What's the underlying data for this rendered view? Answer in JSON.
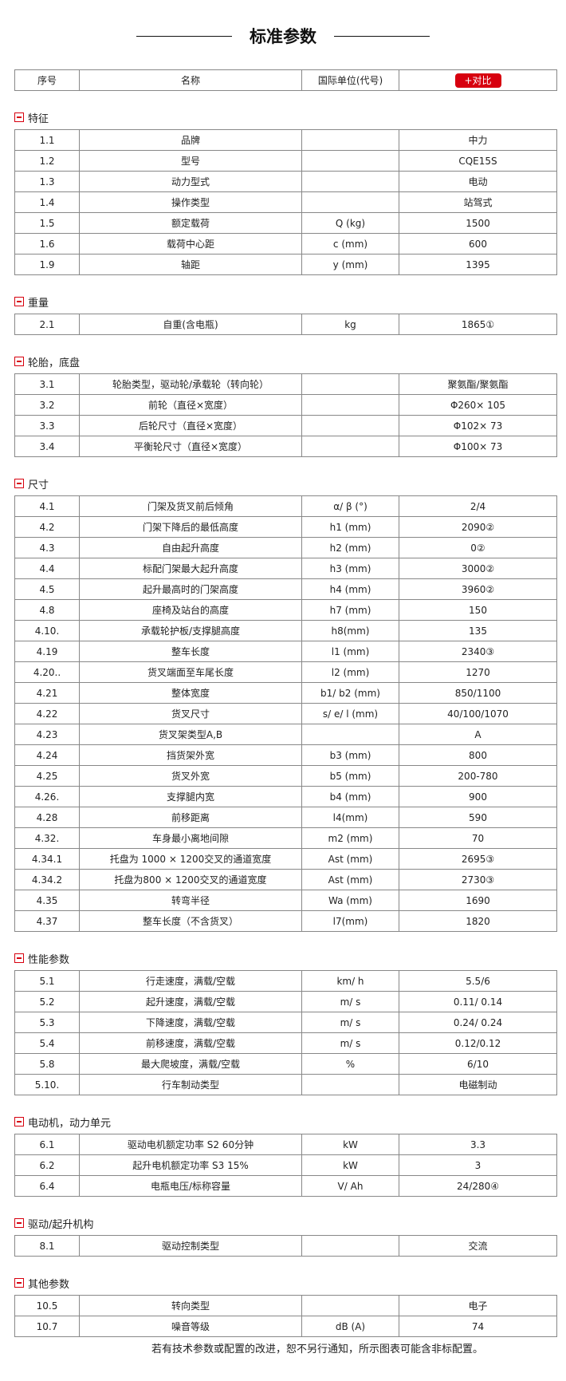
{
  "title": "标准参数",
  "header": {
    "col1": "序号",
    "col2": "名称",
    "col3": "国际单位(代号)",
    "compare_button": "+对比"
  },
  "accent_color": "#d7000f",
  "sections": [
    {
      "title": "特征",
      "rows": [
        [
          "1.1",
          "品牌",
          "",
          "中力"
        ],
        [
          "1.2",
          "型号",
          "",
          "CQE15S"
        ],
        [
          "1.3",
          "动力型式",
          "",
          "电动"
        ],
        [
          "1.4",
          "操作类型",
          "",
          "站驾式"
        ],
        [
          "1.5",
          "额定载荷",
          "Q (kg)",
          "1500"
        ],
        [
          "1.6",
          "载荷中心距",
          "c (mm)",
          "600"
        ],
        [
          "1.9",
          "轴距",
          "y (mm)",
          "1395"
        ]
      ]
    },
    {
      "title": "重量",
      "rows": [
        [
          "2.1",
          "自重(含电瓶)",
          "kg",
          "1865①"
        ]
      ]
    },
    {
      "title": "轮胎，底盘",
      "rows": [
        [
          "3.1",
          "轮胎类型，驱动轮/承载轮（转向轮）",
          "",
          "聚氨酯/聚氨酯"
        ],
        [
          "3.2",
          "前轮（直径×宽度）",
          "",
          "Φ260× 105"
        ],
        [
          "3.3",
          "后轮尺寸（直径×宽度）",
          "",
          "Φ102× 73"
        ],
        [
          "3.4",
          "平衡轮尺寸（直径×宽度）",
          "",
          "Φ100× 73"
        ]
      ]
    },
    {
      "title": "尺寸",
      "rows": [
        [
          "4.1",
          "门架及货叉前后倾角",
          "α/ β (°)",
          "2/4"
        ],
        [
          "4.2",
          "门架下降后的最低高度",
          "h1 (mm)",
          "2090②"
        ],
        [
          "4.3",
          "自由起升高度",
          "h2 (mm)",
          "0②"
        ],
        [
          "4.4",
          "标配门架最大起升高度",
          "h3 (mm)",
          "3000②"
        ],
        [
          "4.5",
          "起升最高时的门架高度",
          "h4 (mm)",
          "3960②"
        ],
        [
          "4.8",
          "座椅及站台的高度",
          "h7 (mm)",
          "150"
        ],
        [
          "4.10.",
          "承载轮护板/支撑腿高度",
          "h8(mm)",
          "135"
        ],
        [
          "4.19",
          "整车长度",
          "l1 (mm)",
          "2340③"
        ],
        [
          "4.20..",
          "货叉端面至车尾长度",
          "l2 (mm)",
          "1270"
        ],
        [
          "4.21",
          "整体宽度",
          "b1/ b2 (mm)",
          "850/1100"
        ],
        [
          "4.22",
          "货叉尺寸",
          "s/ e/ l (mm)",
          "40/100/1070"
        ],
        [
          "4.23",
          "货叉架类型A,B",
          "",
          "A"
        ],
        [
          "4.24",
          "挡货架外宽",
          "b3 (mm)",
          "800"
        ],
        [
          "4.25",
          "货叉外宽",
          "b5 (mm)",
          "200-780"
        ],
        [
          "4.26.",
          "支撑腿内宽",
          "b4 (mm)",
          "900"
        ],
        [
          "4.28",
          "前移距离",
          "l4(mm)",
          "590"
        ],
        [
          "4.32.",
          "车身最小离地间隙",
          "m2 (mm)",
          "70"
        ],
        [
          "4.34.1",
          "托盘为 1000 × 1200交叉的通道宽度",
          "Ast (mm)",
          "2695③"
        ],
        [
          "4.34.2",
          "托盘为800 × 1200交叉的通道宽度",
          "Ast (mm)",
          "2730③"
        ],
        [
          "4.35",
          "转弯半径",
          "Wa (mm)",
          "1690"
        ],
        [
          "4.37",
          "整车长度（不含货叉）",
          "l7(mm)",
          "1820"
        ]
      ]
    },
    {
      "title": "性能参数",
      "rows": [
        [
          "5.1",
          "行走速度，满载/空载",
          "km/ h",
          "5.5/6"
        ],
        [
          "5.2",
          "起升速度，满载/空载",
          "m/ s",
          "0.11/ 0.14"
        ],
        [
          "5.3",
          "下降速度，满载/空载",
          "m/ s",
          "0.24/ 0.24"
        ],
        [
          "5.4",
          "前移速度，满载/空载",
          "m/ s",
          "0.12/0.12"
        ],
        [
          "5.8",
          "最大爬坡度，满载/空载",
          "%",
          "6/10"
        ],
        [
          "5.10.",
          "行车制动类型",
          "",
          "电磁制动"
        ]
      ]
    },
    {
      "title": "电动机，动力单元",
      "rows": [
        [
          "6.1",
          "驱动电机额定功率 S2 60分钟",
          "kW",
          "3.3"
        ],
        [
          "6.2",
          "起升电机额定功率 S3 15%",
          "kW",
          "3"
        ],
        [
          "6.4",
          "电瓶电压/标称容量",
          "V/ Ah",
          "24/280④"
        ]
      ]
    },
    {
      "title": "驱动/起升机构",
      "rows": [
        [
          "8.1",
          "驱动控制类型",
          "",
          "交流"
        ]
      ]
    },
    {
      "title": "其他参数",
      "rows": [
        [
          "10.5",
          "转向类型",
          "",
          "电子"
        ],
        [
          "10.7",
          "噪音等级",
          "dB (A)",
          "74"
        ]
      ]
    }
  ],
  "footer": "若有技术参数或配置的改进，恕不另行通知，所示图表可能含非标配置。"
}
